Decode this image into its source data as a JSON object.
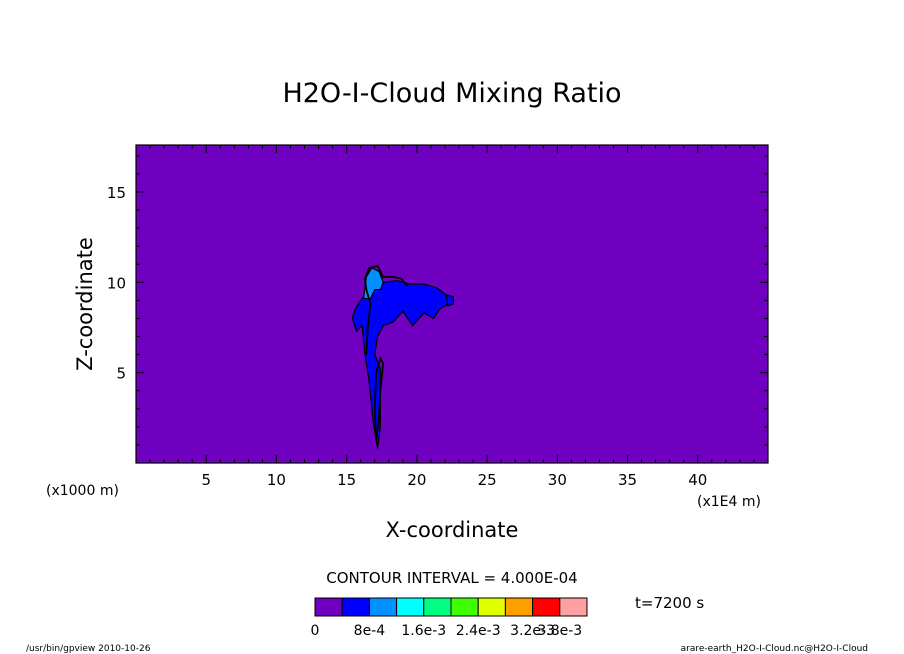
{
  "chart_data": {
    "type": "heatmap",
    "title": "H2O-I-Cloud Mixing Ratio",
    "xlabel": "X-coordinate",
    "ylabel": "Z-coordinate",
    "x_unit_label": "(x1E4 m)",
    "y_unit_label": "(x1000 m)",
    "xlim": [
      0,
      45
    ],
    "ylim": [
      0,
      17.6
    ],
    "x_ticks": [
      5,
      10,
      15,
      20,
      25,
      30,
      35,
      40
    ],
    "y_ticks": [
      5,
      10,
      15
    ],
    "background_color": "#7000c0",
    "contour_interval_label": "CONTOUR INTERVAL = 4.000E-04",
    "time_label": "t=7200 s",
    "colorbar": {
      "colors": [
        "#7000c0",
        "#0000ff",
        "#0090ff",
        "#00ffff",
        "#00ff80",
        "#40ff00",
        "#e0ff00",
        "#ffa000",
        "#ff0000",
        "#ffa0a0"
      ],
      "labels": [
        "0",
        "8e-4",
        "1.6e-3",
        "2.4e-3",
        "3.2e-3",
        "3.8e-3"
      ]
    },
    "regions": [
      {
        "level": 1,
        "color": "#0000ff",
        "points": [
          [
            16.3,
            9.3
          ],
          [
            16.8,
            10.4
          ],
          [
            17.6,
            10.0
          ],
          [
            18.6,
            10.1
          ],
          [
            19.5,
            9.9
          ],
          [
            20.5,
            9.9
          ],
          [
            21.4,
            9.7
          ],
          [
            22.1,
            9.3
          ],
          [
            22.5,
            9.0
          ],
          [
            22.2,
            8.8
          ],
          [
            21.6,
            8.5
          ],
          [
            21.2,
            8.0
          ],
          [
            20.5,
            8.3
          ],
          [
            19.7,
            7.6
          ],
          [
            19.0,
            8.4
          ],
          [
            18.3,
            7.8
          ],
          [
            17.6,
            7.6
          ],
          [
            17.2,
            7.0
          ],
          [
            17.0,
            6.0
          ],
          [
            17.4,
            5.2
          ],
          [
            17.4,
            2.0
          ],
          [
            17.2,
            0.8
          ],
          [
            16.9,
            2.2
          ],
          [
            16.6,
            4.5
          ],
          [
            16.3,
            6.0
          ],
          [
            16.1,
            7.6
          ],
          [
            15.7,
            7.3
          ],
          [
            15.4,
            8.0
          ],
          [
            15.6,
            8.5
          ],
          [
            16.0,
            9.0
          ]
        ]
      },
      {
        "level": 1,
        "color": "#0000ff",
        "points": [
          [
            22.1,
            9.3
          ],
          [
            22.6,
            9.2
          ],
          [
            22.6,
            8.8
          ],
          [
            22.2,
            8.7
          ]
        ]
      },
      {
        "level": 2,
        "color": "#0090ff",
        "points": [
          [
            16.2,
            9.1
          ],
          [
            16.4,
            10.3
          ],
          [
            16.8,
            10.8
          ],
          [
            17.3,
            10.6
          ],
          [
            17.6,
            10.0
          ],
          [
            17.4,
            9.6
          ],
          [
            17.0,
            9.6
          ],
          [
            16.7,
            9.1
          ]
        ]
      }
    ],
    "contour_lines": [
      {
        "points": [
          [
            17.1,
            1.2
          ],
          [
            17.3,
            2.5
          ],
          [
            17.4,
            4.0
          ],
          [
            17.6,
            5.5
          ],
          [
            17.4,
            5.8
          ],
          [
            17.1,
            5.0
          ],
          [
            17.0,
            3.0
          ],
          [
            17.1,
            1.2
          ]
        ]
      },
      {
        "points": [
          [
            16.4,
            6.0
          ],
          [
            16.5,
            7.5
          ],
          [
            16.7,
            8.8
          ],
          [
            16.4,
            9.6
          ],
          [
            16.3,
            10.2
          ],
          [
            16.6,
            10.8
          ],
          [
            17.2,
            10.9
          ],
          [
            17.6,
            10.3
          ],
          [
            18.3,
            10.3
          ],
          [
            18.9,
            10.2
          ],
          [
            19.3,
            9.8
          ]
        ]
      }
    ],
    "footer_left": "/usr/bin/gpview  2010-10-26",
    "footer_right": "arare-earth_H2O-I-Cloud.nc@H2O-I-Cloud"
  }
}
